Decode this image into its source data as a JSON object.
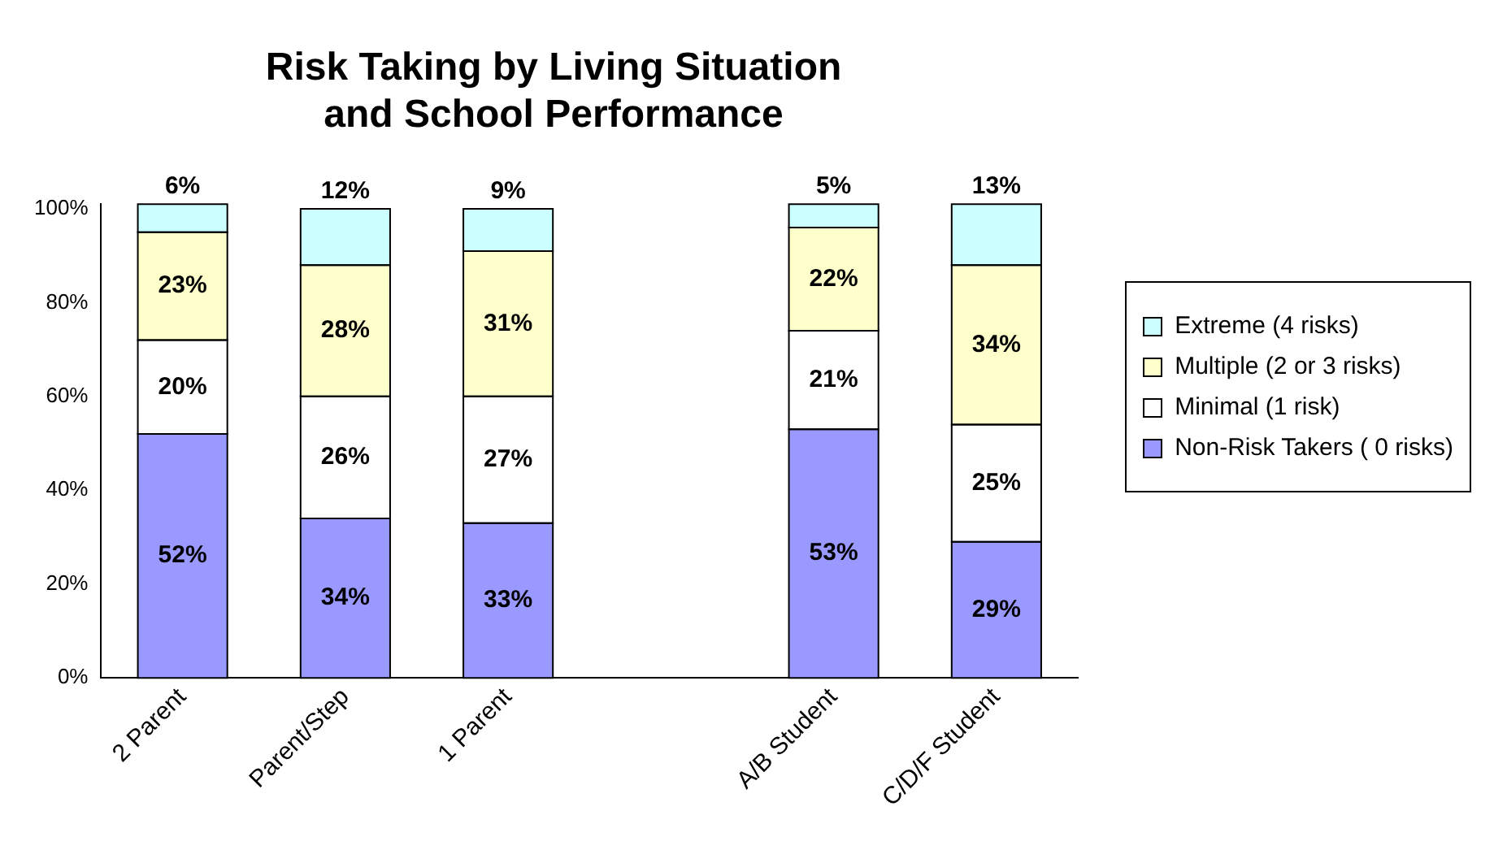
{
  "chart_data": {
    "type": "bar",
    "title": "Risk Taking by Living Situation\nand School Performance",
    "stacked": true,
    "categories": [
      "2 Parent",
      "Parent/Step",
      "1 Parent",
      null,
      "A/B Student",
      "C/D/F Student"
    ],
    "series": [
      {
        "name": "Non-Risk Takers ( 0 risks)",
        "color": "#9999ff",
        "values": [
          52,
          34,
          33,
          null,
          53,
          29
        ],
        "value_labels": [
          "52%",
          "34%",
          "33%",
          null,
          "53%",
          "29%"
        ]
      },
      {
        "name": "Minimal (1 risk)",
        "color": "#ffffff",
        "values": [
          20,
          26,
          27,
          null,
          21,
          25
        ],
        "value_labels": [
          "20%",
          "26%",
          "27%",
          null,
          "21%",
          "25%"
        ]
      },
      {
        "name": "Multiple (2 or 3 risks)",
        "color": "#ffffcc",
        "values": [
          23,
          28,
          31,
          null,
          22,
          34
        ],
        "value_labels": [
          "23%",
          "28%",
          "31%",
          null,
          "22%",
          "34%"
        ]
      },
      {
        "name": "Extreme (4 risks)",
        "color": "#ccffff",
        "values": [
          6,
          12,
          9,
          null,
          5,
          13
        ],
        "value_labels": [
          "6%",
          "12%",
          "9%",
          null,
          "5%",
          "13%"
        ]
      }
    ],
    "ylim": [
      0,
      101
    ],
    "yticks": [
      {
        "value": 0,
        "label": "0%"
      },
      {
        "value": 20,
        "label": "20%"
      },
      {
        "value": 40,
        "label": "40%"
      },
      {
        "value": 60,
        "label": "60%"
      },
      {
        "value": 80,
        "label": "80%"
      },
      {
        "value": 100,
        "label": "100%"
      }
    ],
    "legend": "right",
    "grid": false
  }
}
